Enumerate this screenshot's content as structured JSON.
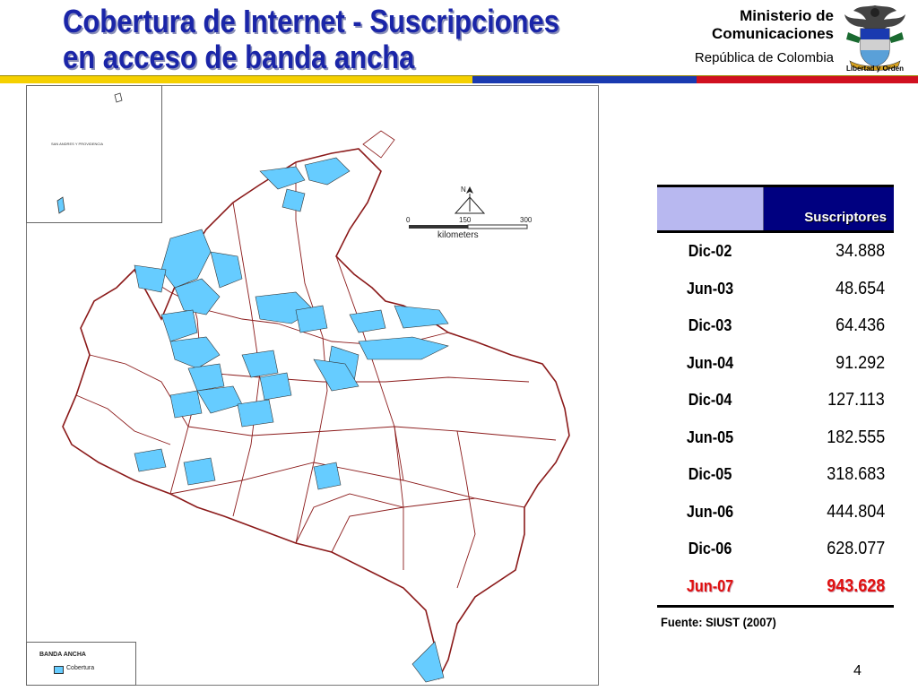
{
  "header": {
    "title": "Cobertura de Internet - Suscripciones en acceso de banda ancha",
    "ministry_line1": "Ministerio de",
    "ministry_line2": "Comunicaciones",
    "country": "República de Colombia",
    "seal_caption": "Libertad y Orden",
    "colors": {
      "title": "#1a25a8",
      "flag_yellow": "#f5d000",
      "flag_blue": "#1a3ab0",
      "flag_red": "#d01020"
    }
  },
  "map": {
    "inset_label": "SAN ANDRES Y PROVIDENCIA",
    "scale": {
      "north": "N",
      "tick_0": "0",
      "tick_1": "150",
      "tick_2": "300",
      "unit": "kilometers"
    },
    "legend": {
      "title": "BANDA ANCHA",
      "item": "Cobertura",
      "swatch_color": "#66ccff"
    },
    "colors": {
      "border": "#8b1a1a",
      "coverage": "#66ccff"
    }
  },
  "table": {
    "header": "Suscriptores",
    "rows": [
      {
        "period": "Dic-02",
        "value": "34.888"
      },
      {
        "period": "Jun-03",
        "value": "48.654"
      },
      {
        "period": "Dic-03",
        "value": "64.436"
      },
      {
        "period": "Jun-04",
        "value": "91.292"
      },
      {
        "period": "Dic-04",
        "value": "127.113"
      },
      {
        "period": "Jun-05",
        "value": "182.555"
      },
      {
        "period": "Dic-05",
        "value": "318.683"
      },
      {
        "period": "Jun-06",
        "value": "444.804"
      },
      {
        "period": "Dic-06",
        "value": "628.077"
      },
      {
        "period": "Jun-07",
        "value": "943.628"
      }
    ],
    "highlight_color": "#e01010"
  },
  "footer": {
    "source": "Fuente: SIUST (2007)",
    "page_number": "4"
  }
}
